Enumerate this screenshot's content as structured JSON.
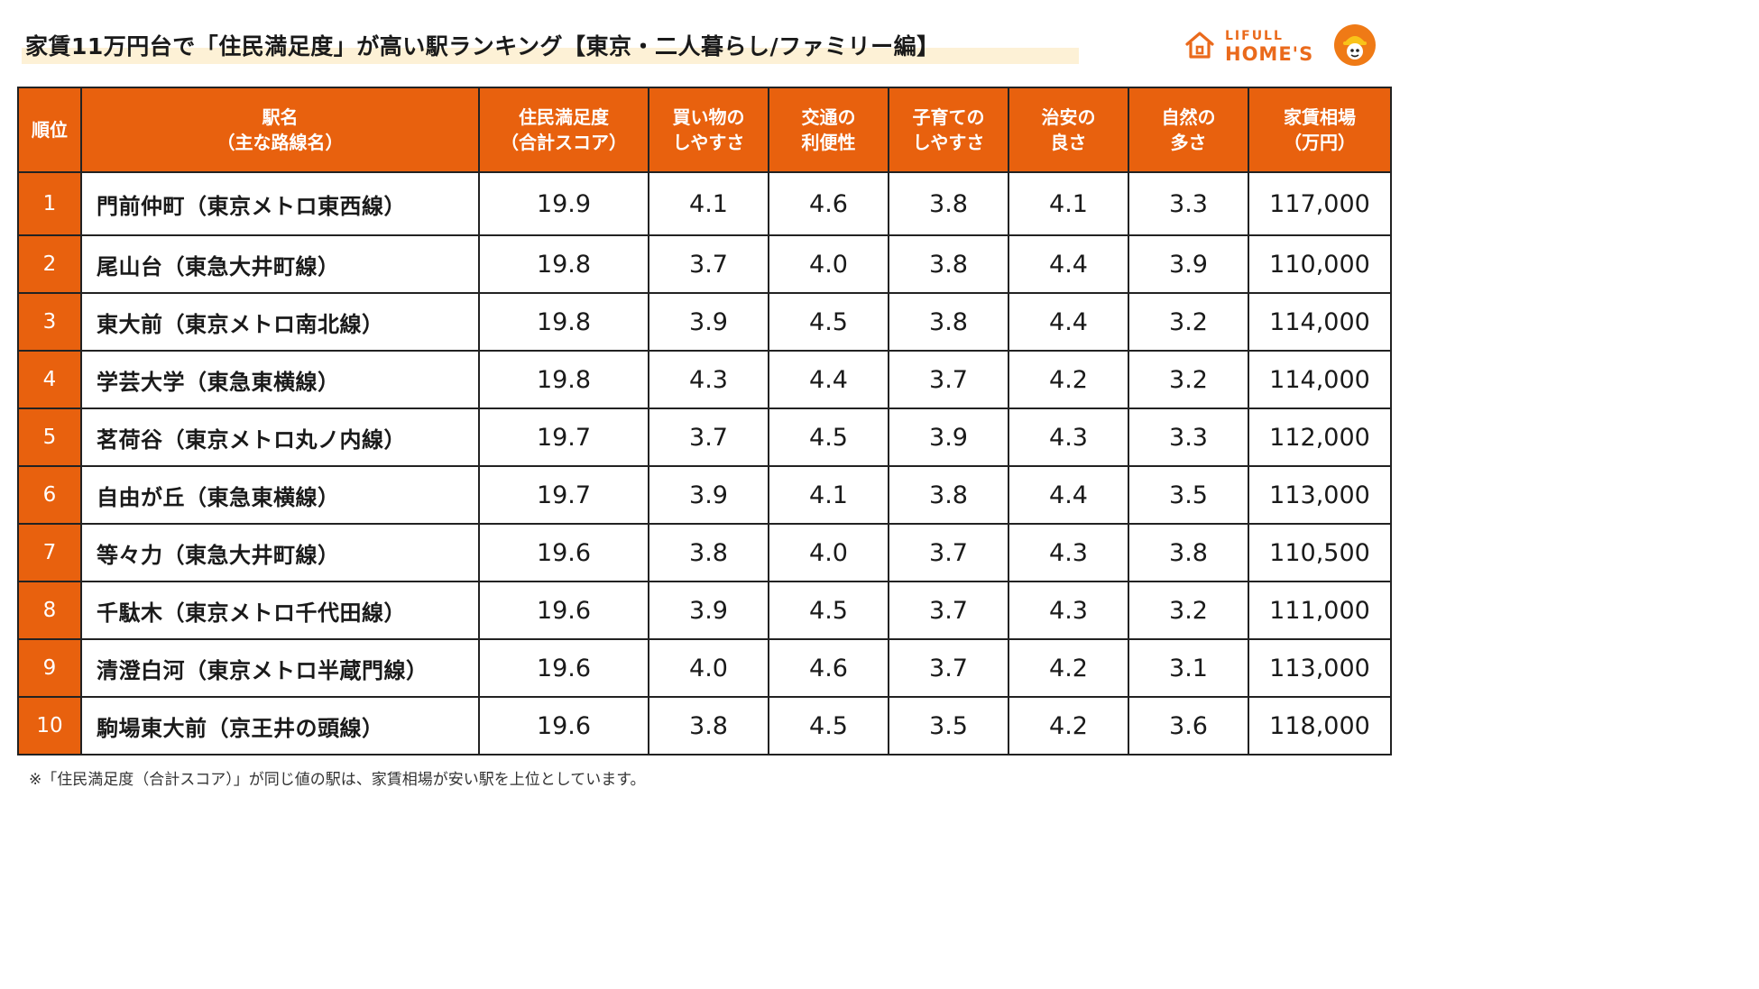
{
  "header": {
    "title": "家賃11万円台で「住民満足度」が高い駅ランキング【東京・二人暮らし/ファミリー編】",
    "logo_top": "LIFULL",
    "logo_main": "HOME'S"
  },
  "colors": {
    "accent": "#e8610e",
    "title_highlight": "#fdf1d6"
  },
  "chart_data": {
    "type": "table",
    "title": "家賃11万円台で「住民満足度」が高い駅ランキング【東京・二人暮らし/ファミリー編】",
    "columns": [
      "順位",
      "駅名\n（主な路線名）",
      "住民満足度\n（合計スコア）",
      "買い物の\nしやすさ",
      "交通の\n利便性",
      "子育ての\nしやすさ",
      "治安の\n良さ",
      "自然の\n多さ",
      "家賃相場\n（万円）"
    ],
    "rows": [
      {
        "rank": "1",
        "station": "門前仲町（東京メトロ東西線）",
        "total": "19.9",
        "shopping": "4.1",
        "transport": "4.6",
        "childcare": "3.8",
        "safety": "4.1",
        "nature": "3.3",
        "rent": "117,000"
      },
      {
        "rank": "2",
        "station": "尾山台（東急大井町線）",
        "total": "19.8",
        "shopping": "3.7",
        "transport": "4.0",
        "childcare": "3.8",
        "safety": "4.4",
        "nature": "3.9",
        "rent": "110,000"
      },
      {
        "rank": "3",
        "station": "東大前（東京メトロ南北線）",
        "total": "19.8",
        "shopping": "3.9",
        "transport": "4.5",
        "childcare": "3.8",
        "safety": "4.4",
        "nature": "3.2",
        "rent": "114,000"
      },
      {
        "rank": "4",
        "station": "学芸大学（東急東横線）",
        "total": "19.8",
        "shopping": "4.3",
        "transport": "4.4",
        "childcare": "3.7",
        "safety": "4.2",
        "nature": "3.2",
        "rent": "114,000"
      },
      {
        "rank": "5",
        "station": "茗荷谷（東京メトロ丸ノ内線）",
        "total": "19.7",
        "shopping": "3.7",
        "transport": "4.5",
        "childcare": "3.9",
        "safety": "4.3",
        "nature": "3.3",
        "rent": "112,000"
      },
      {
        "rank": "6",
        "station": "自由が丘（東急東横線）",
        "total": "19.7",
        "shopping": "3.9",
        "transport": "4.1",
        "childcare": "3.8",
        "safety": "4.4",
        "nature": "3.5",
        "rent": "113,000"
      },
      {
        "rank": "7",
        "station": "等々力（東急大井町線）",
        "total": "19.6",
        "shopping": "3.8",
        "transport": "4.0",
        "childcare": "3.7",
        "safety": "4.3",
        "nature": "3.8",
        "rent": "110,500"
      },
      {
        "rank": "8",
        "station": "千駄木（東京メトロ千代田線）",
        "total": "19.6",
        "shopping": "3.9",
        "transport": "4.5",
        "childcare": "3.7",
        "safety": "4.3",
        "nature": "3.2",
        "rent": "111,000"
      },
      {
        "rank": "9",
        "station": "清澄白河（東京メトロ半蔵門線）",
        "total": "19.6",
        "shopping": "4.0",
        "transport": "4.6",
        "childcare": "3.7",
        "safety": "4.2",
        "nature": "3.1",
        "rent": "113,000"
      },
      {
        "rank": "10",
        "station": "駒場東大前（京王井の頭線）",
        "total": "19.6",
        "shopping": "3.8",
        "transport": "4.5",
        "childcare": "3.5",
        "safety": "4.2",
        "nature": "3.6",
        "rent": "118,000"
      }
    ],
    "footnote": "※「住民満足度（合計スコア）」が同じ値の駅は、家賃相場が安い駅を上位としています。"
  }
}
